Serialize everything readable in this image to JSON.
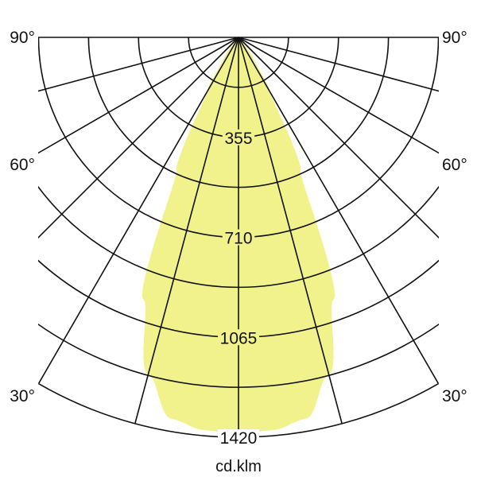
{
  "chart_data": {
    "type": "polar",
    "unit_label": "cd.klm",
    "radial_ticks": [
      355,
      710,
      1065,
      1420
    ],
    "radial_max": 1420,
    "ring_step": 177.5,
    "angle_step_deg": 15,
    "angle_labels": [
      {
        "side": "left",
        "angle": 90,
        "text": "90°"
      },
      {
        "side": "right",
        "angle": 90,
        "text": "90°"
      },
      {
        "side": "left",
        "angle": 60,
        "text": "60°"
      },
      {
        "side": "right",
        "angle": 60,
        "text": "60°"
      },
      {
        "side": "left",
        "angle": 30,
        "text": "30°"
      },
      {
        "side": "right",
        "angle": 30,
        "text": "30°"
      }
    ],
    "series": [
      {
        "symmetric": true,
        "angles_deg": [
          0,
          5,
          10,
          15,
          20,
          25,
          30,
          35,
          40,
          45
        ],
        "values": [
          1405,
          1400,
          1375,
          1240,
          990,
          520,
          220,
          90,
          30,
          0
        ]
      }
    ],
    "colors": {
      "fill": "#f2f28c",
      "grid": "#111111"
    }
  }
}
